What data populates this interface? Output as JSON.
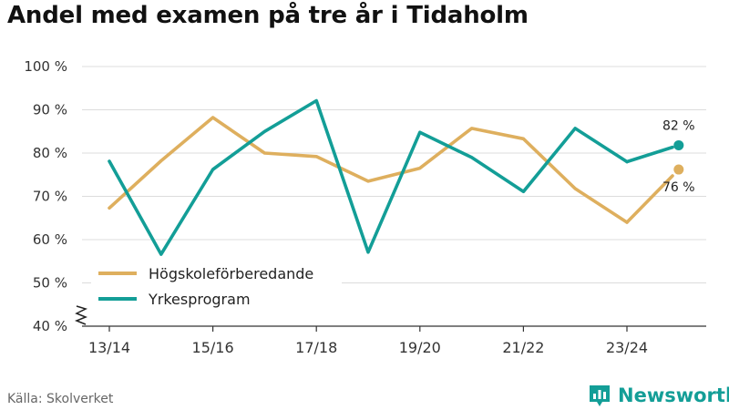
{
  "title": "Andel med examen på tre år i Tidaholm",
  "source": "Källa: Skolverket",
  "brand": {
    "name": "Newsworthy",
    "icon": "newsworthy-logo-icon",
    "color": "#139e97"
  },
  "chart_data": {
    "type": "line",
    "title": "Andel med examen på tre år i Tidaholm",
    "x": [
      "13/14",
      "14/15",
      "15/16",
      "16/17",
      "17/18",
      "18/19",
      "19/20",
      "20/21",
      "21/22",
      "22/23",
      "23/24",
      "24/25"
    ],
    "tick_labels": [
      "13/14",
      "15/16",
      "17/18",
      "19/20",
      "21/22",
      "23/24"
    ],
    "y_ticks": [
      40,
      50,
      60,
      70,
      80,
      90,
      100
    ],
    "y_tick_labels": [
      "40 %",
      "50 %",
      "60 %",
      "70 %",
      "80 %",
      "90 %",
      "100 %"
    ],
    "ylim": [
      40,
      100
    ],
    "y_axis_break": true,
    "grid": true,
    "legend_position": "bottom-left",
    "series": [
      {
        "name": "Högskoleförberedande",
        "color": "#deaf5e",
        "values": [
          67.3,
          78.2,
          88.2,
          80.0,
          79.2,
          73.5,
          76.5,
          85.7,
          83.3,
          71.8,
          64.0,
          76.2
        ],
        "end_label": "76 %"
      },
      {
        "name": "Yrkesprogram",
        "color": "#139e97",
        "values": [
          78.1,
          56.6,
          76.2,
          85.0,
          92.1,
          57.1,
          84.8,
          79.0,
          71.1,
          85.7,
          78.0,
          81.8
        ],
        "end_label": "82 %"
      }
    ]
  }
}
